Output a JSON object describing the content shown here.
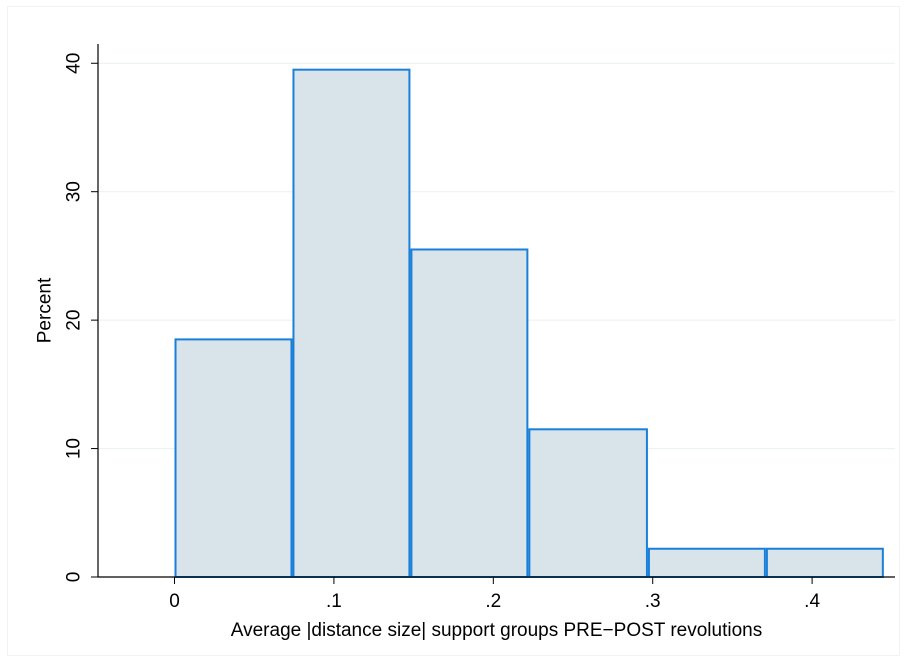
{
  "chart_data": {
    "type": "bar",
    "bins": [
      {
        "from": 0.0,
        "to": 0.074,
        "value": 18.5
      },
      {
        "from": 0.074,
        "to": 0.148,
        "value": 39.5
      },
      {
        "from": 0.148,
        "to": 0.222,
        "value": 25.5
      },
      {
        "from": 0.222,
        "to": 0.297,
        "value": 11.5
      },
      {
        "from": 0.297,
        "to": 0.371,
        "value": 2.2
      },
      {
        "from": 0.371,
        "to": 0.445,
        "value": 2.2
      }
    ],
    "xlabel": "Average |distance size| support groups PRE−POST revolutions",
    "ylabel": "Percent",
    "x_ticks": [
      {
        "value": 0,
        "label": "0"
      },
      {
        "value": 0.1,
        "label": ".1"
      },
      {
        "value": 0.2,
        "label": ".2"
      },
      {
        "value": 0.3,
        "label": ".3"
      },
      {
        "value": 0.4,
        "label": ".4"
      }
    ],
    "y_ticks": [
      {
        "value": 0,
        "label": "0"
      },
      {
        "value": 10,
        "label": "10"
      },
      {
        "value": 20,
        "label": "20"
      },
      {
        "value": 30,
        "label": "30"
      },
      {
        "value": 40,
        "label": "40"
      }
    ],
    "xlim": [
      -0.048,
      0.452
    ],
    "ylim": [
      0,
      41.5
    ],
    "grid": true,
    "colors": {
      "bar_fill": "#d9e4ea",
      "bar_stroke": "#1a7fd9",
      "grid": "#e9eff3",
      "axis": "#000000"
    }
  }
}
